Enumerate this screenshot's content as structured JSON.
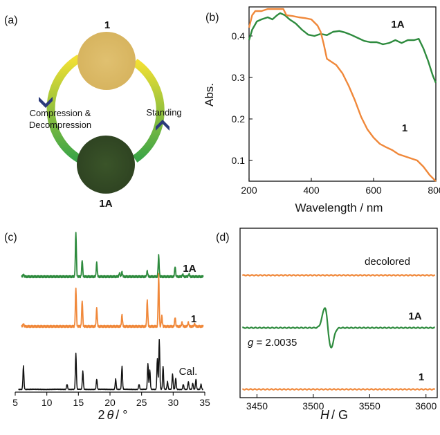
{
  "panel_labels": {
    "a": "(a)",
    "b": "(b)",
    "c": "(c)",
    "d": "(d)"
  },
  "scheme": {
    "top_label": "1",
    "bottom_label": "1A",
    "left_label_line1": "Compression &",
    "left_label_line2": "Decompression",
    "right_label": "Standing",
    "colors": {
      "sample_1": "#d7b45f",
      "sample_1A": "#2f4422",
      "arrow_yellow": "#f2e033",
      "arrow_green": "#3aa447",
      "arrowhead": "#2b3a7a"
    }
  },
  "chart_data": [
    {
      "panel": "(b)",
      "type": "line",
      "xlabel": "Wavelength / nm",
      "ylabel": "Abs.",
      "xlim": [
        200,
        800
      ],
      "ylim": [
        0.05,
        0.47
      ],
      "xticks": [
        200,
        400,
        600,
        800
      ],
      "yticks": [
        0.1,
        0.2,
        0.3,
        0.4
      ],
      "grid": false,
      "series": [
        {
          "name": "1A",
          "color": "#2e8b3e",
          "x": [
            200,
            210,
            225,
            240,
            260,
            275,
            290,
            300,
            315,
            330,
            350,
            370,
            390,
            410,
            430,
            450,
            470,
            490,
            510,
            530,
            550,
            570,
            590,
            610,
            630,
            650,
            670,
            690,
            710,
            730,
            745,
            760,
            775,
            790,
            800
          ],
          "y": [
            0.39,
            0.415,
            0.435,
            0.44,
            0.445,
            0.44,
            0.45,
            0.455,
            0.45,
            0.44,
            0.43,
            0.415,
            0.403,
            0.4,
            0.405,
            0.402,
            0.41,
            0.412,
            0.408,
            0.402,
            0.395,
            0.388,
            0.385,
            0.385,
            0.38,
            0.383,
            0.39,
            0.383,
            0.39,
            0.39,
            0.393,
            0.37,
            0.34,
            0.305,
            0.287
          ]
        },
        {
          "name": "1",
          "color": "#f0883a",
          "x": [
            200,
            210,
            220,
            240,
            260,
            280,
            300,
            310,
            320,
            340,
            360,
            380,
            400,
            420,
            430,
            440,
            450,
            460,
            480,
            500,
            520,
            540,
            560,
            580,
            600,
            620,
            640,
            660,
            680,
            700,
            720,
            740,
            760,
            780,
            800
          ],
          "y": [
            0.42,
            0.45,
            0.46,
            0.46,
            0.465,
            0.465,
            0.465,
            0.465,
            0.45,
            0.448,
            0.445,
            0.443,
            0.44,
            0.425,
            0.41,
            0.38,
            0.345,
            0.34,
            0.33,
            0.31,
            0.28,
            0.245,
            0.205,
            0.175,
            0.155,
            0.14,
            0.132,
            0.125,
            0.115,
            0.11,
            0.105,
            0.1,
            0.085,
            0.065,
            0.05
          ]
        }
      ]
    },
    {
      "panel": "(c)",
      "type": "line",
      "xlabel": "2θ / °",
      "xlim": [
        5,
        35
      ],
      "xticks": [
        5,
        10,
        15,
        20,
        25,
        30,
        35
      ],
      "grid": false,
      "series": [
        {
          "name": "1A",
          "color": "#2e8b3e",
          "peaks": [
            [
              6.3,
              0.05
            ],
            [
              14.6,
              0.95
            ],
            [
              15.6,
              0.35
            ],
            [
              17.9,
              0.3
            ],
            [
              21.5,
              0.08
            ],
            [
              21.9,
              0.1
            ],
            [
              25.9,
              0.12
            ],
            [
              27.7,
              0.45
            ],
            [
              30.3,
              0.22
            ],
            [
              31.5,
              0.05
            ],
            [
              32.5,
              0.06
            ]
          ]
        },
        {
          "name": "1",
          "color": "#f0883a",
          "peaks": [
            [
              6.3,
              0.05
            ],
            [
              14.6,
              0.75
            ],
            [
              15.6,
              0.5
            ],
            [
              17.9,
              0.35
            ],
            [
              21.9,
              0.22
            ],
            [
              25.9,
              0.5
            ],
            [
              27.7,
              1.0
            ],
            [
              28.2,
              0.2
            ],
            [
              30.3,
              0.18
            ],
            [
              31.4,
              0.08
            ],
            [
              32.4,
              0.08
            ],
            [
              33.4,
              0.05
            ]
          ]
        },
        {
          "name": "Cal.",
          "color": "#111111",
          "peaks": [
            [
              6.3,
              0.45
            ],
            [
              13.2,
              0.1
            ],
            [
              14.6,
              0.7
            ],
            [
              15.7,
              0.35
            ],
            [
              17.9,
              0.2
            ],
            [
              20.9,
              0.2
            ],
            [
              21.9,
              0.45
            ],
            [
              24.6,
              0.1
            ],
            [
              26.0,
              0.5
            ],
            [
              26.3,
              0.38
            ],
            [
              27.5,
              0.6
            ],
            [
              27.8,
              0.97
            ],
            [
              28.4,
              0.45
            ],
            [
              29.1,
              0.15
            ],
            [
              29.9,
              0.3
            ],
            [
              30.4,
              0.22
            ],
            [
              31.6,
              0.1
            ],
            [
              32.4,
              0.15
            ],
            [
              33.1,
              0.12
            ],
            [
              33.6,
              0.2
            ],
            [
              34.4,
              0.1
            ]
          ]
        }
      ]
    },
    {
      "panel": "(d)",
      "type": "line",
      "xlabel": "H / G",
      "xlim": [
        3435,
        3610
      ],
      "xticks": [
        3450,
        3500,
        3550,
        3600
      ],
      "grid": false,
      "annotation": "g = 2.0035",
      "series": [
        {
          "name": "decolored",
          "color": "#f0883a",
          "signal": "flat"
        },
        {
          "name": "1A",
          "color": "#2e8b3e",
          "signal": "derivative",
          "center": 3513,
          "width": 4,
          "amplitude": 1
        },
        {
          "name": "1",
          "color": "#f0883a",
          "signal": "flat"
        }
      ]
    }
  ]
}
